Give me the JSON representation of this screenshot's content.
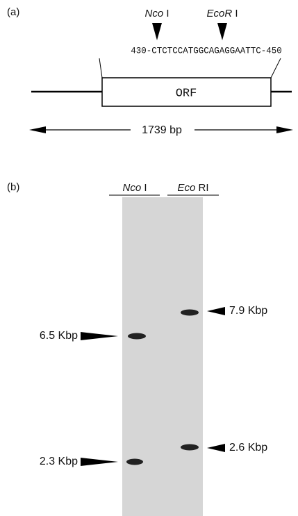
{
  "panel_a": {
    "label": "(a)",
    "site_1": {
      "name": "Nco",
      "suffix": "I"
    },
    "site_2": {
      "name": "EcoR",
      "suffix": "I"
    },
    "sequence": "430-CTCTCCATGGCAGAGGAATTC-450",
    "orf": "ORF",
    "length": "1739 bp"
  },
  "panel_b": {
    "label": "(b)",
    "lanes": [
      {
        "name": "Nco",
        "suffix": "I"
      },
      {
        "name": "Eco",
        "suffix": "RI"
      }
    ],
    "markers": {
      "left": [
        "6.5 Kbp",
        "2.3 Kbp"
      ],
      "right": [
        "7.9 Kbp",
        "2.6 Kbp"
      ]
    }
  }
}
